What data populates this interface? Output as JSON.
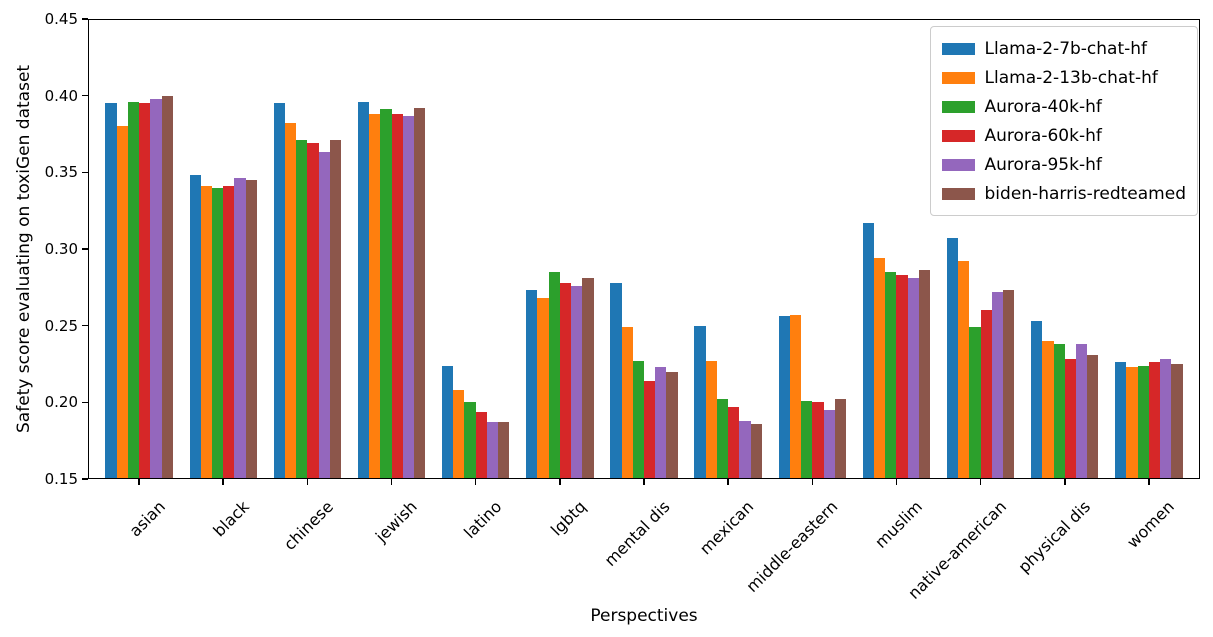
{
  "chart_data": {
    "type": "bar",
    "title": "",
    "xlabel": "Perspectives",
    "ylabel": "Safety score evaluating on toxiGen dataset",
    "ylim": [
      0.15,
      0.45
    ],
    "yticks": [
      "0.15",
      "0.20",
      "0.25",
      "0.30",
      "0.35",
      "0.40",
      "0.45"
    ],
    "grid": false,
    "legend_position": "upper right",
    "categories": [
      "asian",
      "black",
      "chinese",
      "jewish",
      "latino",
      "lgbtq",
      "mental dis",
      "mexican",
      "middle-eastern",
      "muslim",
      "native-american",
      "physical dis",
      "women"
    ],
    "series": [
      {
        "name": "Llama-2-7b-chat-hf",
        "color": "#1f77b4",
        "values": [
          0.395,
          0.348,
          0.395,
          0.396,
          0.224,
          0.273,
          0.278,
          0.25,
          0.256,
          0.317,
          0.307,
          0.253,
          0.226
        ]
      },
      {
        "name": "Llama-2-13b-chat-hf",
        "color": "#ff7f0e",
        "values": [
          0.38,
          0.341,
          0.382,
          0.388,
          0.208,
          0.268,
          0.249,
          0.227,
          0.257,
          0.294,
          0.292,
          0.24,
          0.223
        ]
      },
      {
        "name": "Aurora-40k-hf",
        "color": "#2ca02c",
        "values": [
          0.396,
          0.34,
          0.371,
          0.391,
          0.2,
          0.285,
          0.227,
          0.202,
          0.201,
          0.285,
          0.249,
          0.238,
          0.224
        ]
      },
      {
        "name": "Aurora-60k-hf",
        "color": "#d62728",
        "values": [
          0.395,
          0.341,
          0.369,
          0.388,
          0.194,
          0.278,
          0.214,
          0.197,
          0.2,
          0.283,
          0.26,
          0.228,
          0.226
        ]
      },
      {
        "name": "Aurora-95k-hf",
        "color": "#9467bd",
        "values": [
          0.398,
          0.346,
          0.363,
          0.387,
          0.187,
          0.276,
          0.223,
          0.188,
          0.195,
          0.281,
          0.272,
          0.238,
          0.228
        ]
      },
      {
        "name": "biden-harris-redteamed",
        "color": "#8c564b",
        "values": [
          0.4,
          0.345,
          0.371,
          0.392,
          0.187,
          0.281,
          0.22,
          0.186,
          0.202,
          0.286,
          0.273,
          0.231,
          0.225
        ]
      }
    ]
  }
}
